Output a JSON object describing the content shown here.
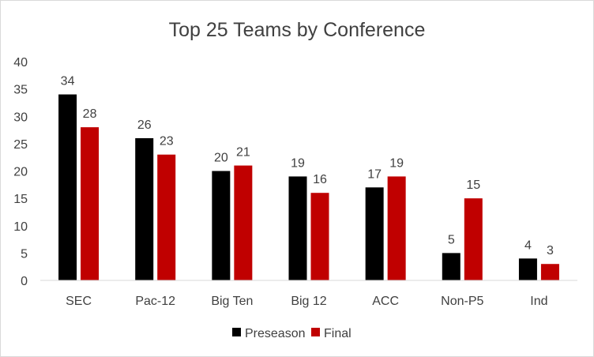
{
  "chart_data": {
    "type": "bar",
    "title": "Top 25 Teams by Conference",
    "xlabel": "",
    "ylabel": "",
    "categories": [
      "SEC",
      "Pac-12",
      "Big Ten",
      "Big 12",
      "ACC",
      "Non-P5",
      "Ind"
    ],
    "series": [
      {
        "name": "Preseason",
        "color": "#000000",
        "values": [
          34,
          26,
          20,
          19,
          17,
          5,
          4
        ]
      },
      {
        "name": "Final",
        "color": "#c00000",
        "values": [
          28,
          23,
          21,
          16,
          19,
          15,
          3
        ]
      }
    ],
    "ylim": [
      0,
      40
    ],
    "yticks": [
      "0",
      "5",
      "10",
      "15",
      "20",
      "25",
      "30",
      "35",
      "40"
    ],
    "grid": false,
    "legend": "bottom",
    "data_labels": true
  }
}
